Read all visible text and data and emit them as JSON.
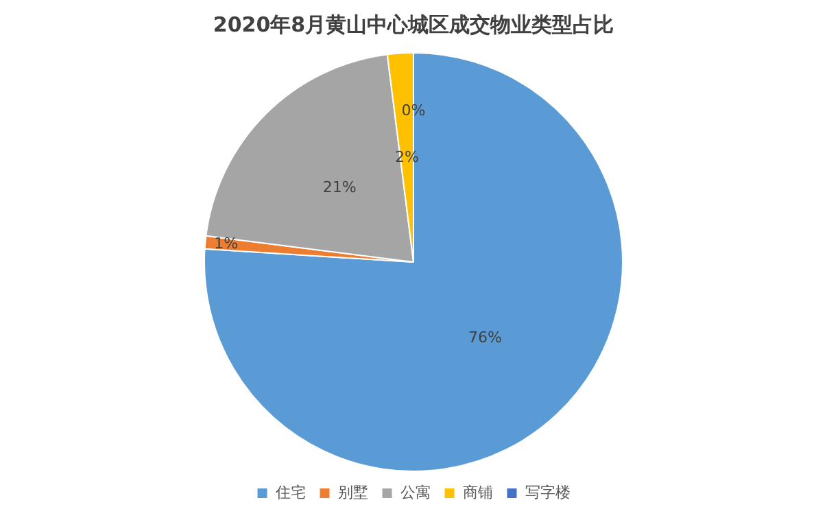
{
  "chart_data": {
    "type": "pie",
    "title": "2020年8月黄山中心城区成交物业类型占比",
    "categories": [
      "住宅",
      "别墅",
      "公寓",
      "商铺",
      "写字楼"
    ],
    "values": [
      76,
      1,
      21,
      2,
      0
    ],
    "colors": [
      "#5b9bd5",
      "#ed7d31",
      "#a5a5a5",
      "#ffc000",
      "#4472c4"
    ],
    "value_labels": [
      "76%",
      "1%",
      "21%",
      "2%",
      "0%"
    ],
    "legend": "bottom"
  }
}
